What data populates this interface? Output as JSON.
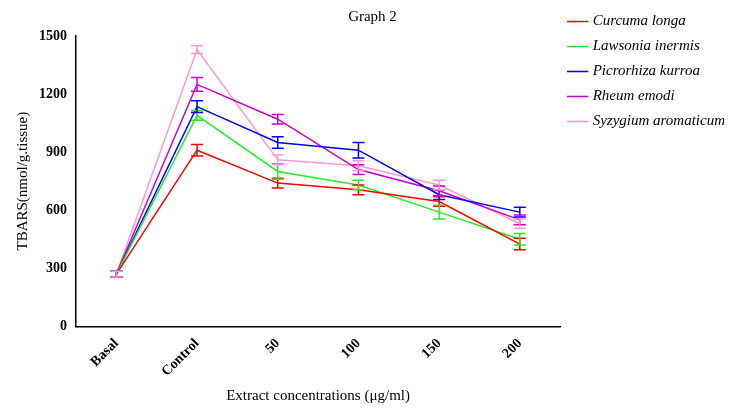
{
  "chart_data": {
    "type": "line",
    "title": "Graph 2",
    "x_label": "Extract concentrations (μg/ml)",
    "y_label": "TBARS(nmol/g.tissue)",
    "categories": [
      "Basal",
      "Control",
      "50",
      "100",
      "150",
      "200"
    ],
    "series": [
      {
        "name": "Curcuma longa",
        "color": "#ff0000",
        "values": [
          270,
          910,
          740,
          705,
          645,
          425
        ],
        "errors": [
          15,
          30,
          25,
          25,
          25,
          30
        ]
      },
      {
        "name": "Lawsonia inermis",
        "color": "#22ee22",
        "values": [
          270,
          1090,
          800,
          730,
          590,
          450
        ],
        "errors": [
          15,
          25,
          40,
          25,
          35,
          30
        ]
      },
      {
        "name": "Picrorhiza kurroa",
        "color": "#0000ff",
        "values": [
          270,
          1135,
          950,
          910,
          680,
          590
        ],
        "errors": [
          15,
          30,
          30,
          40,
          25,
          25
        ]
      },
      {
        "name": "Rheum emodi",
        "color": "#cc00cc",
        "values": [
          270,
          1250,
          1070,
          810,
          700,
          550
        ],
        "errors": [
          15,
          35,
          25,
          25,
          25,
          25
        ]
      },
      {
        "name": "Syzygium aromaticum",
        "color": "#ff99cc",
        "values": [
          270,
          1430,
          860,
          830,
          730,
          530
        ],
        "errors": [
          15,
          20,
          25,
          25,
          25,
          25
        ]
      }
    ],
    "ylim": [
      0,
      1500
    ],
    "yticks": [
      0,
      300,
      600,
      900,
      1200,
      1500
    ],
    "grid": false,
    "legend": "right"
  }
}
